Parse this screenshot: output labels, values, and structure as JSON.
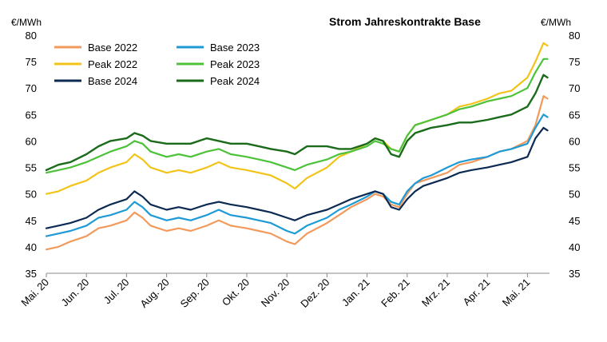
{
  "chart_data": {
    "type": "line",
    "title": "Strom Jahreskontrakte Base",
    "ylabel_left": "€/MWh",
    "ylabel_right": "€/MWh",
    "ylim": [
      35,
      80
    ],
    "y_ticks": [
      35,
      40,
      45,
      50,
      55,
      60,
      65,
      70,
      75,
      80
    ],
    "x_ticks": [
      "Mai. 20",
      "Jun. 20",
      "Jul. 20",
      "Aug. 20",
      "Sep. 20",
      "Okt. 20",
      "Nov. 20",
      "Dez. 20",
      "Jan. 21",
      "Feb. 21",
      "Mrz. 21",
      "Apr. 21",
      "Mai. 21"
    ],
    "x_end_month_index": 12.55,
    "grid": false,
    "legend_placement": "top-left",
    "series": [
      {
        "name": "Base 2022",
        "color": "#f29a5c",
        "width": 2.2,
        "x": [
          0,
          0.3,
          0.6,
          1,
          1.3,
          1.6,
          2,
          2.2,
          2.4,
          2.6,
          3,
          3.3,
          3.6,
          4,
          4.3,
          4.6,
          5,
          5.3,
          5.6,
          6,
          6.2,
          6.5,
          7,
          7.3,
          7.6,
          8,
          8.2,
          8.4,
          8.6,
          8.8,
          9,
          9.2,
          9.4,
          9.6,
          10,
          10.3,
          10.6,
          11,
          11.3,
          11.6,
          12,
          12.2,
          12.4,
          12.5
        ],
        "y": [
          39.5,
          40,
          41,
          42,
          43.5,
          44,
          45,
          46.5,
          45.5,
          44,
          43,
          43.5,
          43,
          44,
          45,
          44,
          43.5,
          43,
          42.5,
          41,
          40.5,
          42.5,
          44.5,
          46,
          47.5,
          49,
          50,
          49.5,
          48,
          47.5,
          50,
          52,
          52.5,
          53,
          54,
          55.5,
          56,
          57,
          58,
          58.5,
          60,
          63,
          68.5,
          68
        ]
      },
      {
        "name": "Base 2023",
        "color": "#1e9ad6",
        "width": 2.2,
        "x": [
          0,
          0.3,
          0.6,
          1,
          1.3,
          1.6,
          2,
          2.2,
          2.4,
          2.6,
          3,
          3.3,
          3.6,
          4,
          4.3,
          4.6,
          5,
          5.3,
          5.6,
          6,
          6.2,
          6.5,
          7,
          7.3,
          7.6,
          8,
          8.2,
          8.4,
          8.6,
          8.8,
          9,
          9.2,
          9.4,
          9.6,
          10,
          10.3,
          10.6,
          11,
          11.3,
          11.6,
          12,
          12.2,
          12.4,
          12.5
        ],
        "y": [
          42,
          42.5,
          43,
          44,
          45.5,
          46,
          47,
          48.5,
          47.5,
          46,
          45,
          45.5,
          45,
          46,
          47,
          46,
          45.5,
          45,
          44.5,
          43,
          42.5,
          44,
          45.5,
          47,
          48,
          49.5,
          50.5,
          50,
          48.5,
          48,
          50.5,
          52,
          53,
          53.5,
          55,
          56,
          56.5,
          57,
          58,
          58.5,
          59.5,
          62.5,
          65,
          64.5
        ]
      },
      {
        "name": "Base 2024",
        "color": "#0d2a52",
        "width": 2.2,
        "x": [
          0,
          0.3,
          0.6,
          1,
          1.3,
          1.6,
          2,
          2.2,
          2.4,
          2.6,
          3,
          3.3,
          3.6,
          4,
          4.3,
          4.6,
          5,
          5.3,
          5.6,
          6,
          6.2,
          6.5,
          7,
          7.3,
          7.6,
          8,
          8.2,
          8.4,
          8.6,
          8.8,
          9,
          9.2,
          9.4,
          9.6,
          10,
          10.3,
          10.6,
          11,
          11.3,
          11.6,
          12,
          12.2,
          12.4,
          12.5
        ],
        "y": [
          43.5,
          44,
          44.5,
          45.5,
          47,
          48,
          49,
          50.5,
          49.5,
          48,
          47,
          47.5,
          47,
          48,
          48.5,
          48,
          47.5,
          47,
          46.5,
          45.5,
          45,
          46,
          47,
          48,
          49,
          50,
          50.5,
          50,
          47.5,
          47,
          49,
          50.5,
          51.5,
          52,
          53,
          54,
          54.5,
          55,
          55.5,
          56,
          57,
          60.5,
          62.5,
          62
        ]
      },
      {
        "name": "Peak 2022",
        "color": "#f2c41a",
        "width": 2.2,
        "x": [
          0,
          0.3,
          0.6,
          1,
          1.3,
          1.6,
          2,
          2.2,
          2.4,
          2.6,
          3,
          3.3,
          3.6,
          4,
          4.3,
          4.6,
          5,
          5.3,
          5.6,
          6,
          6.2,
          6.5,
          7,
          7.3,
          7.6,
          8,
          8.2,
          8.4,
          8.6,
          8.8,
          9,
          9.2,
          9.4,
          9.6,
          10,
          10.3,
          10.6,
          11,
          11.3,
          11.6,
          12,
          12.2,
          12.4,
          12.5
        ],
        "y": [
          50,
          50.5,
          51.5,
          52.5,
          54,
          55,
          56,
          57.5,
          56.5,
          55,
          54,
          54.5,
          54,
          55,
          56,
          55,
          54.5,
          54,
          53.5,
          52,
          51,
          53,
          55,
          57,
          58,
          59.5,
          60.5,
          60,
          58.5,
          58,
          61,
          63,
          63.5,
          64,
          65,
          66.5,
          67,
          68,
          69,
          69.5,
          72,
          75,
          78.5,
          78
        ]
      },
      {
        "name": "Peak 2023",
        "color": "#4cc238",
        "width": 2.2,
        "x": [
          0,
          0.3,
          0.6,
          1,
          1.3,
          1.6,
          2,
          2.2,
          2.4,
          2.6,
          3,
          3.3,
          3.6,
          4,
          4.3,
          4.6,
          5,
          5.3,
          5.6,
          6,
          6.2,
          6.5,
          7,
          7.3,
          7.6,
          8,
          8.2,
          8.4,
          8.6,
          8.8,
          9,
          9.2,
          9.4,
          9.6,
          10,
          10.3,
          10.6,
          11,
          11.3,
          11.6,
          12,
          12.2,
          12.4,
          12.5
        ],
        "y": [
          54,
          54.5,
          55,
          56,
          57,
          58,
          59,
          60,
          59.5,
          58,
          57,
          57.5,
          57,
          58,
          58.5,
          57.5,
          57,
          56.5,
          56,
          55,
          54.5,
          55.5,
          56.5,
          57.5,
          58,
          59,
          60,
          59.5,
          58.5,
          58,
          61,
          63,
          63.5,
          64,
          65,
          66,
          66.5,
          67.5,
          68,
          68.5,
          70,
          73,
          75.5,
          75.5
        ]
      },
      {
        "name": "Peak 2024",
        "color": "#1a6b1a",
        "width": 2.4,
        "x": [
          0,
          0.3,
          0.6,
          1,
          1.3,
          1.6,
          2,
          2.2,
          2.4,
          2.6,
          3,
          3.3,
          3.6,
          4,
          4.3,
          4.6,
          5,
          5.3,
          5.6,
          6,
          6.2,
          6.5,
          7,
          7.3,
          7.6,
          8,
          8.2,
          8.4,
          8.6,
          8.8,
          9,
          9.2,
          9.4,
          9.6,
          10,
          10.3,
          10.6,
          11,
          11.3,
          11.6,
          12,
          12.2,
          12.4,
          12.5
        ],
        "y": [
          54.5,
          55.5,
          56,
          57.5,
          59,
          60,
          60.5,
          61.5,
          61,
          60,
          59.5,
          59.5,
          59.5,
          60.5,
          60,
          59.5,
          59.5,
          59,
          58.5,
          58,
          57.5,
          59,
          59,
          58.5,
          58.5,
          59.5,
          60.5,
          60,
          57.5,
          57,
          60,
          61.5,
          62,
          62.5,
          63,
          63.5,
          63.5,
          64,
          64.5,
          65,
          66.5,
          69,
          72.5,
          72
        ]
      }
    ]
  }
}
